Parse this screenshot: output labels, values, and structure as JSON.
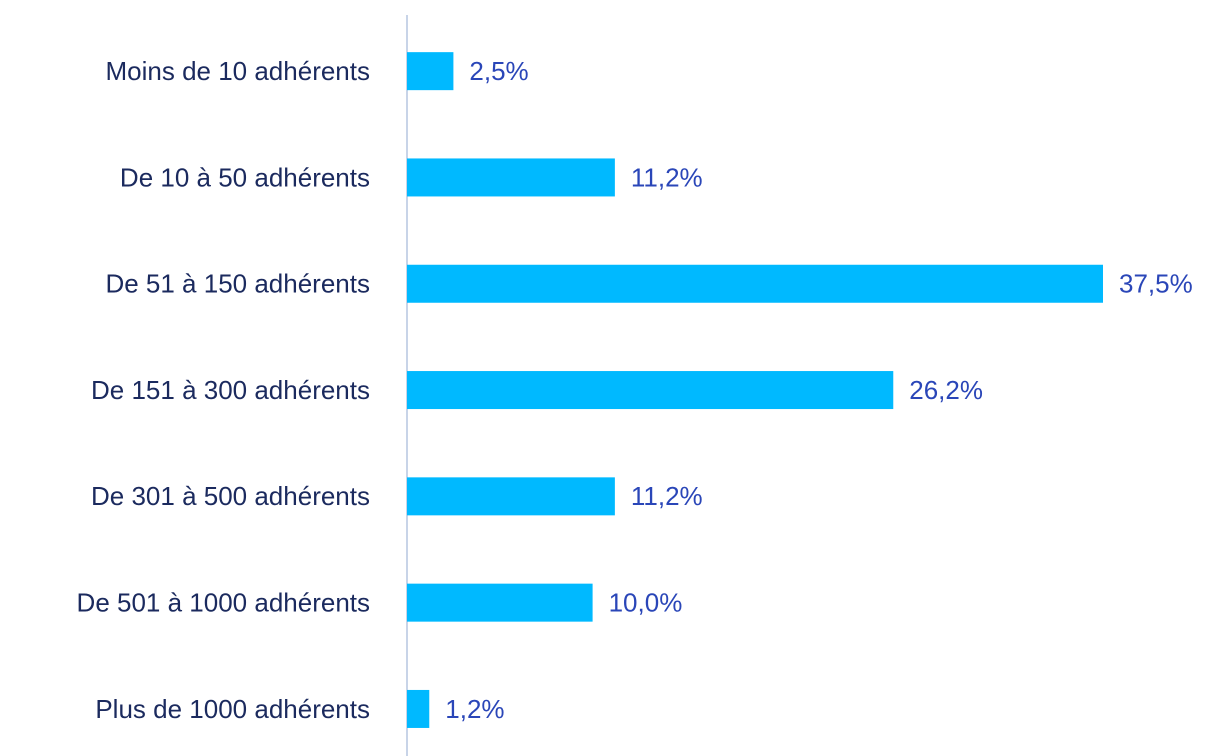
{
  "chart_data": {
    "type": "bar",
    "orientation": "horizontal",
    "categories": [
      "Moins de 10 adhérents",
      "De 10 à 50 adhérents",
      "De 51 à 150 adhérents",
      "De 151 à 300 adhérents",
      "De 301 à 500 adhérents",
      "De 501 à 1000 adhérents",
      "Plus de 1000 adhérents"
    ],
    "values": [
      2.5,
      11.2,
      37.5,
      26.2,
      11.2,
      10.0,
      1.2
    ],
    "value_labels": [
      "2,5%",
      "11,2%",
      "37,5%",
      "26,2%",
      "11,2%",
      "10,0%",
      "1,2%"
    ],
    "color": "#00b9ff"
  }
}
